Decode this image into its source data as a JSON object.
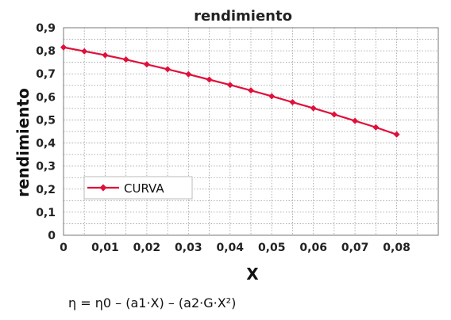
{
  "chart_data": {
    "type": "line",
    "title": "rendimiento",
    "xlabel": "X",
    "ylabel": "rendimiento",
    "xlim": [
      0,
      0.09
    ],
    "ylim": [
      0,
      0.9
    ],
    "x_ticks": [
      "0",
      "0,01",
      "0,02",
      "0,03",
      "0,04",
      "0,05",
      "0,06",
      "0,07",
      "0,08"
    ],
    "y_ticks": [
      "0",
      "0,1",
      "0,2",
      "0,3",
      "0,4",
      "0,5",
      "0,6",
      "0,7",
      "0,8",
      "0,9"
    ],
    "grid": true,
    "legend_position": "left",
    "series": [
      {
        "name": "CURVA",
        "color": "#e0103a",
        "marker": "diamond",
        "x": [
          0,
          0.005,
          0.01,
          0.015,
          0.02,
          0.025,
          0.03,
          0.035,
          0.04,
          0.045,
          0.05,
          0.055,
          0.06,
          0.065,
          0.07,
          0.075,
          0.08
        ],
        "y": [
          0.815,
          0.798,
          0.781,
          0.762,
          0.741,
          0.72,
          0.698,
          0.675,
          0.652,
          0.628,
          0.603,
          0.577,
          0.551,
          0.524,
          0.496,
          0.468,
          0.437
        ]
      }
    ],
    "formula": "η = η0 – (a1·X) – (a2·G·X²)"
  }
}
